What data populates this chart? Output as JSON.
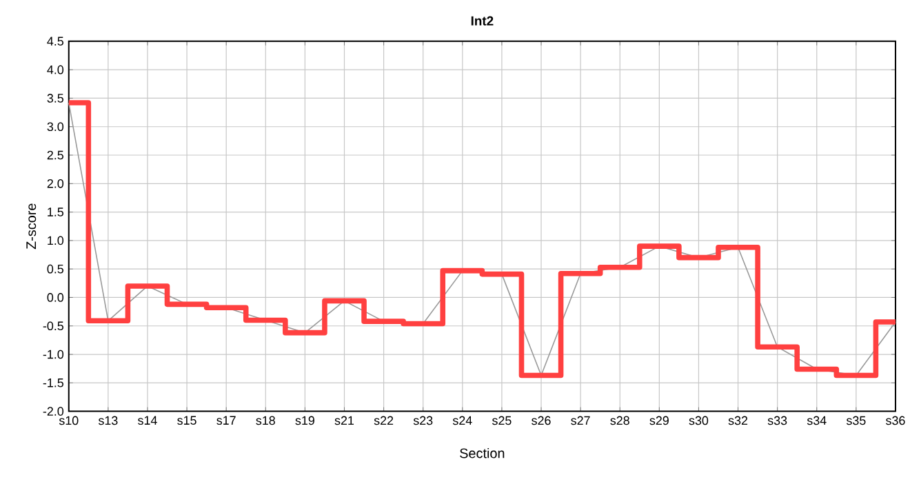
{
  "chart_data": {
    "type": "step",
    "title": "Int2",
    "xlabel": "Section",
    "ylabel": "Z-score",
    "categories": [
      "s10",
      "s13",
      "s14",
      "s15",
      "s17",
      "s18",
      "s19",
      "s21",
      "s22",
      "s23",
      "s24",
      "s25",
      "s26",
      "s27",
      "s28",
      "s29",
      "s30",
      "s32",
      "s33",
      "s34",
      "s35",
      "s36"
    ],
    "series": [
      {
        "type": "line",
        "color": "#999999",
        "values": [
          3.42,
          -0.41,
          0.2,
          -0.12,
          -0.18,
          -0.4,
          -0.62,
          -0.06,
          -0.42,
          -0.46,
          0.47,
          0.41,
          -1.37,
          0.42,
          0.53,
          0.9,
          0.7,
          0.88,
          -0.87,
          -1.26,
          -1.37,
          -0.43
        ]
      },
      {
        "color": "#ff4040",
        "values": [
          3.42,
          -0.41,
          0.2,
          -0.12,
          -0.18,
          -0.4,
          -0.62,
          -0.06,
          -0.42,
          -0.46,
          0.47,
          0.41,
          -1.37,
          0.42,
          0.53,
          0.9,
          0.7,
          0.88,
          -0.87,
          -1.26,
          -1.37,
          -0.43
        ]
      }
    ],
    "ylim": [
      -2.0,
      4.5
    ],
    "yticks": [
      {
        "value": -2.0,
        "label": "-2.0"
      },
      {
        "value": -1.5,
        "label": "-1.5"
      },
      {
        "value": -1.0,
        "label": "-1.0"
      },
      {
        "value": -0.5,
        "label": "-0.5"
      },
      {
        "value": 0.0,
        "label": "0.0"
      },
      {
        "value": 0.5,
        "label": "0.5"
      },
      {
        "value": 1.0,
        "label": "1.0"
      },
      {
        "value": 1.5,
        "label": "1.5"
      },
      {
        "value": 2.0,
        "label": "2.0"
      },
      {
        "value": 2.5,
        "label": "2.5"
      },
      {
        "value": 3.0,
        "label": "3.0"
      },
      {
        "value": 3.5,
        "label": "3.5"
      },
      {
        "value": 4.0,
        "label": "4.0"
      },
      {
        "value": 4.5,
        "label": "4.5"
      }
    ],
    "grid": true,
    "marker": "none",
    "line_style": "solid"
  }
}
